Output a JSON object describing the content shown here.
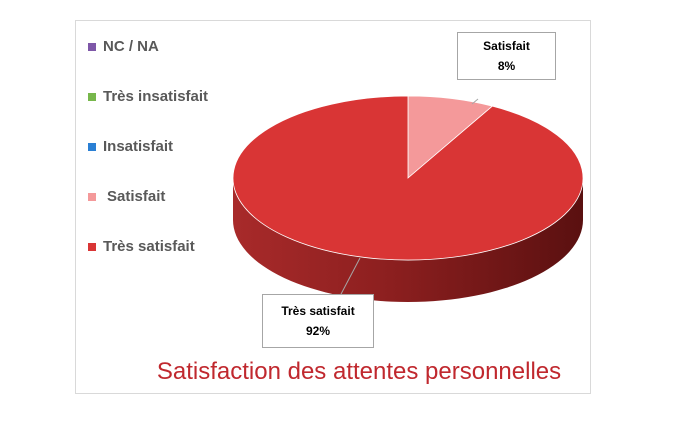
{
  "chart_data": {
    "type": "pie",
    "title": "Satisfaction des attentes personnelles",
    "legend_position": "left",
    "legend": [
      {
        "label": "NC / NA",
        "color": "#7e57a8"
      },
      {
        "label": "Très insatisfait",
        "color": "#77b74b"
      },
      {
        "label": "Insatisfait",
        "color": "#2a7fd4"
      },
      {
        "label": "Satisfait",
        "color": "#f4999a"
      },
      {
        "label": "Très satisfait",
        "color": "#d93535"
      }
    ],
    "slices": [
      {
        "label": "NC / NA",
        "value": 0,
        "color": "#7e57a8"
      },
      {
        "label": "Très insatisfait",
        "value": 0,
        "color": "#77b74b"
      },
      {
        "label": "Insatisfait",
        "value": 0,
        "color": "#2a7fd4"
      },
      {
        "label": "Satisfait",
        "value": 8,
        "percent_label": "8%",
        "color": "#f4999a"
      },
      {
        "label": "Très satisfait",
        "value": 92,
        "percent_label": "92%",
        "color": "#d93535"
      }
    ]
  }
}
